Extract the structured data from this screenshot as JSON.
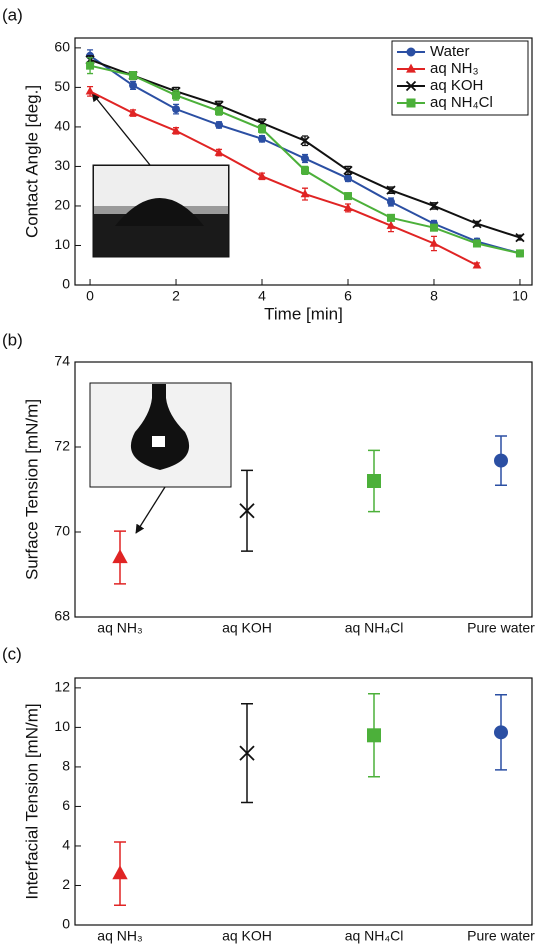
{
  "chart_data": [
    {
      "type": "line",
      "panel": "(a)",
      "xlabel": "Time [min]",
      "ylabel": "Contact Angle [deg.]",
      "x": [
        0,
        1,
        2,
        3,
        4,
        5,
        6,
        7,
        8,
        9,
        10
      ],
      "xlim": [
        -0.35,
        10.28
      ],
      "xticks": [
        0,
        2,
        4,
        6,
        8,
        10
      ],
      "ylim": [
        0,
        62.5
      ],
      "yticks": [
        0,
        10,
        20,
        30,
        40,
        50,
        60
      ],
      "legend": "upper right",
      "series": [
        {
          "name": "Water",
          "color": "#2b4fa3",
          "marker": "circle",
          "values": [
            58,
            50.5,
            44.5,
            40.5,
            37,
            32,
            27,
            21,
            15.5,
            11,
            8
          ],
          "errors": [
            1.5,
            1,
            1.2,
            0.8,
            0.8,
            1,
            0.8,
            1,
            0.8,
            0.8,
            0.8
          ]
        },
        {
          "name": "aq NH₃",
          "color": "#e02424",
          "marker": "triangle",
          "values": [
            49,
            43.5,
            39,
            33.5,
            27.5,
            23,
            19.5,
            15,
            10.5,
            5,
            null
          ],
          "errors": [
            1.2,
            0.8,
            0.8,
            0.8,
            0.8,
            1.5,
            1,
            1.5,
            1.8,
            0.6,
            null
          ]
        },
        {
          "name": "aq KOH",
          "color": "#111111",
          "marker": "x",
          "values": [
            57,
            53,
            49,
            45.5,
            41,
            36.5,
            29,
            24,
            20,
            15.5,
            12
          ],
          "errors": [
            1,
            1,
            1,
            1,
            1,
            1.2,
            1,
            0.8,
            0.8,
            0.6,
            0.6
          ]
        },
        {
          "name": "aq NH₄Cl",
          "color": "#4cb03a",
          "marker": "square",
          "values": [
            55.5,
            53,
            48,
            44,
            39.5,
            29,
            22.5,
            17,
            14.5,
            10.5,
            8
          ],
          "errors": [
            2,
            1,
            1.2,
            1,
            1,
            1,
            0.8,
            0.8,
            0.8,
            0.8,
            0.6
          ]
        }
      ]
    },
    {
      "type": "errorbar",
      "panel": "(b)",
      "ylabel": "Surface Tension [mN/m]",
      "categories": [
        "aq NH₃",
        "aq KOH",
        "aq NH₄Cl",
        "Pure water"
      ],
      "values": [
        69.4,
        70.5,
        71.2,
        71.68
      ],
      "errors": [
        0.62,
        0.95,
        0.72,
        0.58
      ],
      "colors": [
        "#e02424",
        "#111111",
        "#4cb03a",
        "#2b4fa3"
      ],
      "markers": [
        "triangle",
        "x",
        "square",
        "circle"
      ],
      "ylim": [
        68,
        74
      ],
      "yticks": [
        68,
        70,
        72,
        74
      ]
    },
    {
      "type": "errorbar",
      "panel": "(c)",
      "ylabel": "Interfacial Tension [mN/m]",
      "categories": [
        "aq NH₃",
        "aq KOH",
        "aq NH₄Cl",
        "Pure water"
      ],
      "values": [
        2.6,
        8.7,
        9.6,
        9.75
      ],
      "errors": [
        1.6,
        2.5,
        2.1,
        1.9
      ],
      "colors": [
        "#e02424",
        "#111111",
        "#4cb03a",
        "#2b4fa3"
      ],
      "markers": [
        "triangle",
        "x",
        "square",
        "circle"
      ],
      "ylim": [
        0,
        12.5
      ],
      "yticks": [
        0,
        2,
        4,
        6,
        8,
        10,
        12
      ]
    }
  ]
}
